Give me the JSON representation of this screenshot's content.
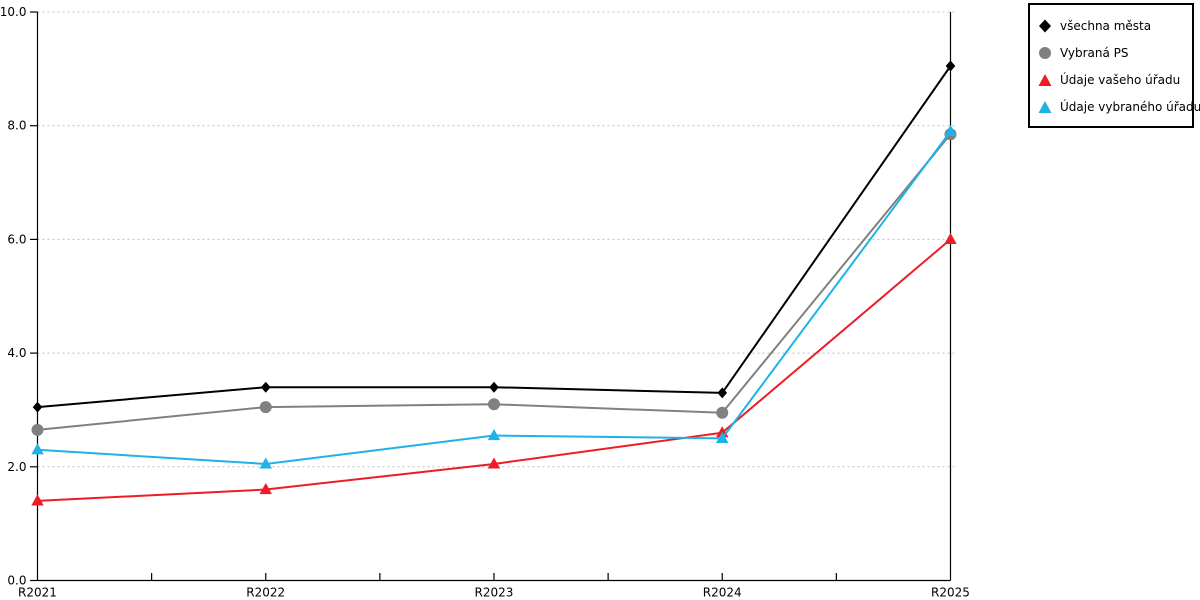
{
  "chart_data": {
    "type": "line",
    "title": "",
    "xlabel": "",
    "ylabel": "",
    "categories": [
      "R2021",
      "R2022",
      "R2023",
      "R2024",
      "R2025"
    ],
    "series": [
      {
        "name": "všechna města",
        "marker": "diamond",
        "color": "#000000",
        "values": [
          3.05,
          3.4,
          3.4,
          3.3,
          9.05
        ]
      },
      {
        "name": "Vybraná PS",
        "marker": "circle",
        "color": "#808080",
        "values": [
          2.65,
          3.05,
          3.1,
          2.95,
          7.85
        ]
      },
      {
        "name": "Údaje vašeho úřadu",
        "marker": "triangle",
        "color": "#ee1c25",
        "values": [
          1.4,
          1.6,
          2.05,
          2.6,
          6.0
        ]
      },
      {
        "name": "Údaje vybraného úřadu",
        "marker": "triangle",
        "color": "#1eb2e8",
        "values": [
          2.3,
          2.05,
          2.55,
          2.5,
          7.9
        ]
      }
    ],
    "ylim": [
      0,
      10
    ],
    "ytick_step": 2,
    "ytick_labels": [
      "0.0",
      "2.0",
      "4.0",
      "6.0",
      "8.0",
      "10.0"
    ],
    "grid": true,
    "grid_style": "dotted",
    "legend_position": "outside-top-right",
    "colors": {
      "axis": "#000000",
      "gridline": "#bfbfbf",
      "background": "#ffffff"
    }
  }
}
